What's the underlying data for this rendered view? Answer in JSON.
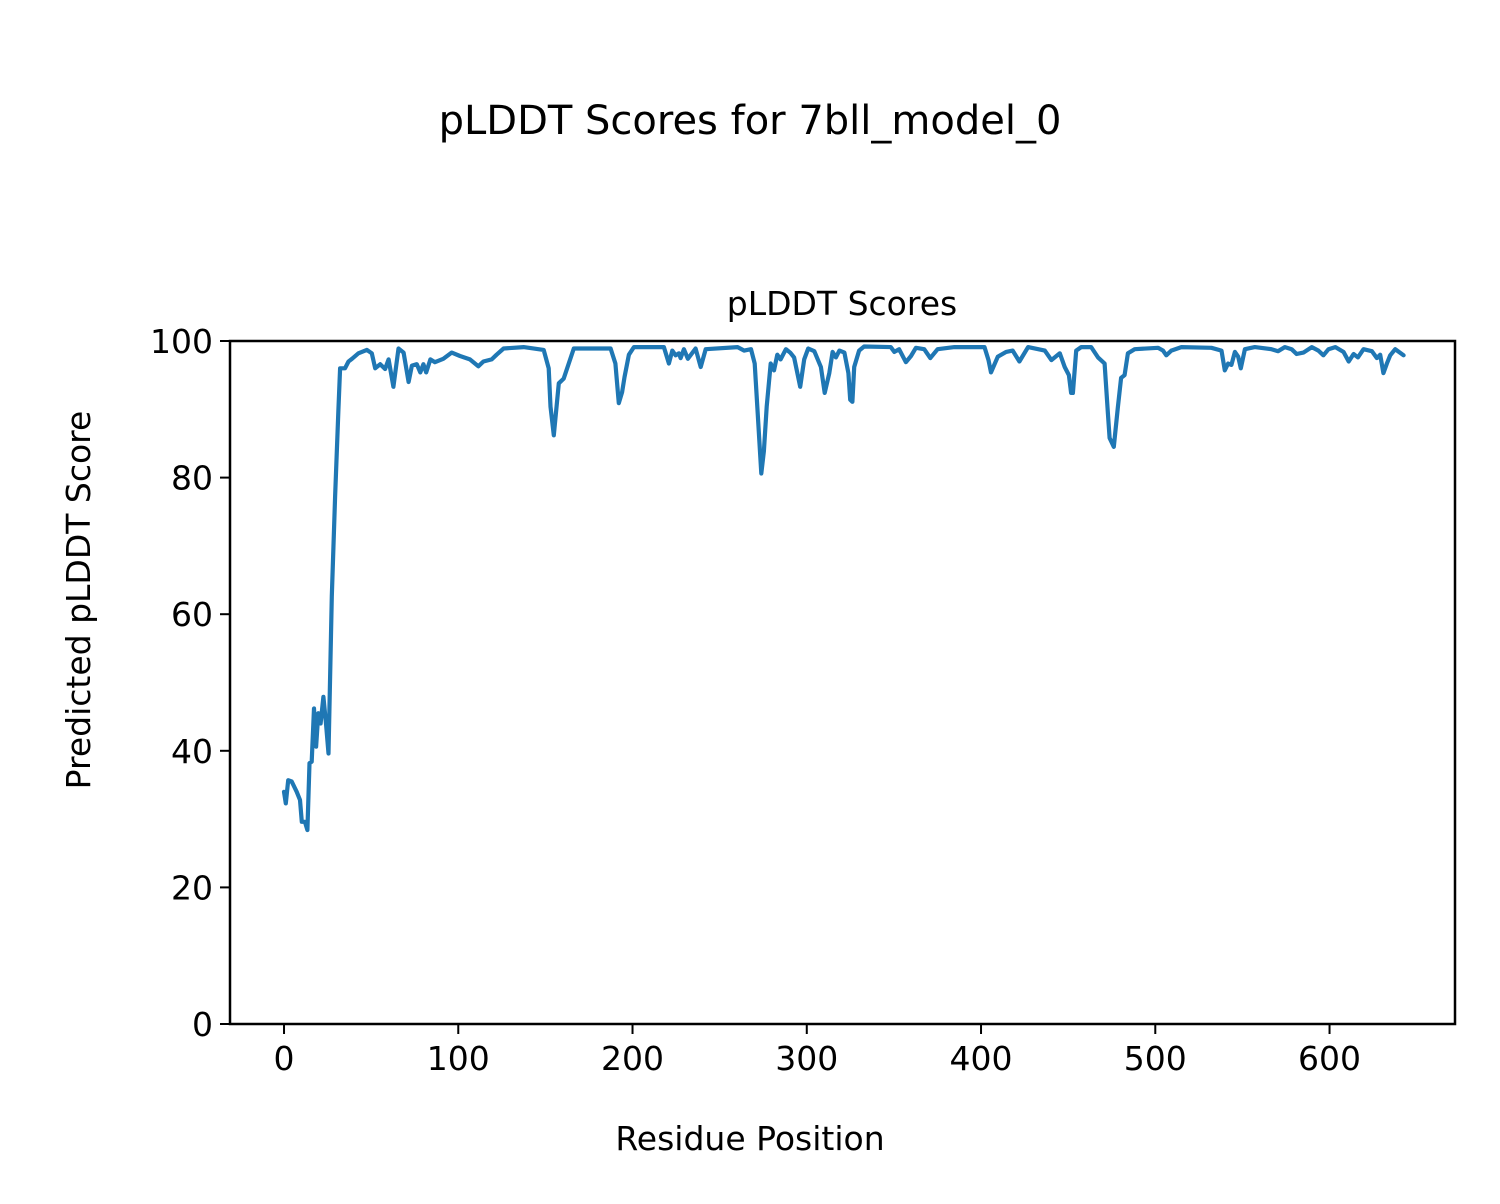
{
  "chart_data": {
    "type": "line",
    "title": "pLDDT Scores for 7bll_model_0",
    "subtitle": "pLDDT Scores",
    "xlabel": "Residue Position",
    "ylabel": "Predicted pLDDT Score",
    "xlim": [
      -31,
      672
    ],
    "ylim": [
      0,
      100
    ],
    "xticks": [
      0,
      100,
      200,
      300,
      400,
      500,
      600
    ],
    "yticks": [
      0,
      20,
      40,
      60,
      80,
      100
    ],
    "grid": false,
    "line_color": "#1f77b4",
    "series": [
      {
        "x": [
          0,
          1,
          2.4,
          4.4,
          7.3,
          9.2,
          10.2,
          12,
          13.4,
          14.6,
          15.9,
          17.2,
          18.4,
          19.7,
          21,
          22.6,
          24.1,
          25.5,
          27.4,
          29.3,
          31.2,
          32.2,
          35,
          37,
          39,
          42.7,
          47.5,
          50.4,
          52.3,
          55.2,
          58,
          60,
          62.8,
          65.7,
          68.6,
          71.5,
          73.4,
          76.2,
          78.2,
          80,
          81.6,
          84,
          86.6,
          91.4,
          96.2,
          101,
          106.7,
          111.5,
          114.4,
          119.2,
          122,
          126,
          137.5,
          149,
          151.9,
          152.9,
          154.8,
          157.7,
          160.5,
          166.3,
          187.4,
          190.2,
          192.1,
          194,
          195.4,
          197.9,
          200.8,
          218,
          220.9,
          222.8,
          224.7,
          226.6,
          227.6,
          229.5,
          231.8,
          236.2,
          239.1,
          242,
          260.3,
          264.1,
          268,
          270.1,
          271.6,
          273.9,
          275.4,
          277,
          279.3,
          281.2,
          283.1,
          285,
          288,
          290.5,
          292.7,
          296.2,
          298.5,
          300.8,
          304.3,
          308.1,
          310.3,
          312.9,
          314.8,
          316.7,
          318.7,
          321.6,
          323.9,
          324.9,
          326.2,
          327.2,
          330,
          332.9,
          348.2,
          350.2,
          353,
          356.9,
          359.8,
          362.6,
          367.4,
          370.9,
          375.1,
          384.7,
          402,
          404.3,
          405.7,
          409.6,
          414.4,
          418.2,
          422,
          427,
          436.6,
          440.4,
          445.2,
          448,
          450.4,
          451.7,
          452.7,
          454.6,
          457.5,
          463.2,
          467.1,
          470.9,
          472.8,
          473.8,
          476.2,
          478.5,
          480.4,
          482.4,
          484.3,
          488.2,
          501.6,
          504.4,
          506.3,
          509.2,
          515,
          532.2,
          538,
          539.9,
          541.8,
          543.7,
          545.7,
          547.6,
          549.1,
          551.4,
          557.1,
          566.7,
          570.5,
          574.4,
          578.2,
          581.1,
          585,
          589.8,
          593.6,
          596.5,
          599.4,
          603.3,
          608,
          611,
          613.8,
          616.3,
          619.5,
          624.3,
          627.2,
          629.1,
          630.9,
          632.9,
          634.8,
          637.7,
          642.5
        ],
        "y": [
          34,
          32.3,
          35.7,
          35.5,
          34,
          32.8,
          29.6,
          29.6,
          28.4,
          38.2,
          38.4,
          46.2,
          40.6,
          45.5,
          44,
          47.9,
          44,
          39.6,
          62.6,
          77.2,
          89.9,
          96,
          96,
          97,
          97.4,
          98.2,
          98.7,
          98.2,
          96,
          96.6,
          95.9,
          97.3,
          93.3,
          98.9,
          98.3,
          94,
          96.4,
          96.6,
          95.4,
          96.6,
          95.4,
          97.3,
          96.9,
          97.4,
          98.3,
          97.8,
          97.3,
          96.3,
          97,
          97.3,
          98,
          98.9,
          99.1,
          98.7,
          96,
          90.4,
          86.2,
          93.8,
          94.5,
          98.9,
          98.9,
          96.7,
          90.9,
          92.5,
          94.7,
          98,
          99.1,
          99.1,
          96.7,
          98.6,
          97.9,
          98.2,
          97.5,
          98.8,
          97.4,
          98.9,
          96.2,
          98.8,
          99.1,
          98.6,
          98.8,
          96.7,
          90.4,
          80.6,
          83.9,
          90.4,
          96.7,
          95.7,
          98,
          97.3,
          98.8,
          98.3,
          97.6,
          93.3,
          97.3,
          98.9,
          98.5,
          96.2,
          92.4,
          95.3,
          98.4,
          97.6,
          98.6,
          98.3,
          95.3,
          91.4,
          91.1,
          96.2,
          98.6,
          99.2,
          99.1,
          98.4,
          98.8,
          96.9,
          97.8,
          99,
          98.8,
          97.5,
          98.8,
          99.1,
          99.1,
          97.2,
          95.4,
          97.7,
          98.4,
          98.6,
          97,
          99.1,
          98.6,
          97.2,
          98.2,
          96.2,
          95,
          92.4,
          92.4,
          98.6,
          99.1,
          99.1,
          97.6,
          96.7,
          89.4,
          85.8,
          84.5,
          90.2,
          94.6,
          95,
          98.2,
          98.8,
          99,
          98.6,
          97.9,
          98.6,
          99.1,
          99,
          98.6,
          95.7,
          96.7,
          96.5,
          98.4,
          97.7,
          96,
          98.8,
          99.1,
          98.8,
          98.5,
          99.1,
          98.8,
          98.1,
          98.3,
          99.1,
          98.6,
          97.9,
          98.8,
          99.1,
          98.4,
          97,
          98.1,
          97.6,
          98.8,
          98.5,
          97.5,
          98,
          95.3,
          96.7,
          97.9,
          98.8,
          97.9
        ]
      }
    ]
  }
}
